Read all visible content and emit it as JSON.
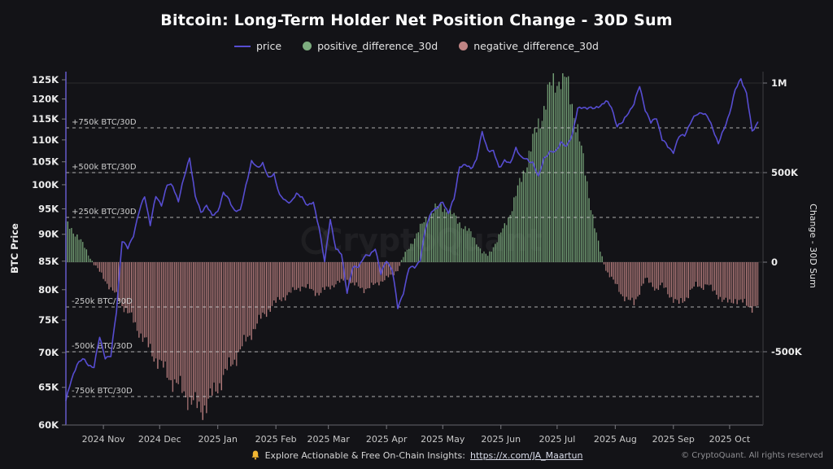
{
  "title": "Bitcoin: Long-Term Holder Net Position Change - 30D Sum",
  "watermark": "CryptoQuant",
  "colors": {
    "background": "#131317",
    "price_line": "#574dd2",
    "positive_bar": "#7dad7f",
    "negative_bar": "#c08484",
    "dashed_line": "#e0e0e0",
    "faint_grid": "rgba(255,255,255,0.10)",
    "tick_text": "#ececec",
    "month_text": "#c8c8c8",
    "annotation_text": "#cdcdcd",
    "left_spine": "#6a5fd8",
    "bottom_spine": "#55555c",
    "bell": "#f2b632"
  },
  "legend": {
    "items": [
      {
        "label": "price",
        "type": "line",
        "color": "#574dd2"
      },
      {
        "label": "positive_difference_30d",
        "type": "dot",
        "color": "#7dad7f"
      },
      {
        "label": "negative_difference_30d",
        "type": "dot",
        "color": "#c08484"
      }
    ]
  },
  "footer": {
    "cta_text": "Explore Actionable & Free On-Chain Insights:",
    "cta_link": "https://x.com/JA_Maartun",
    "copyright": "© CryptoQuant. All rights reserved"
  },
  "chart_data": {
    "type": "mixed",
    "title": "Bitcoin: Long-Term Holder Net Position Change - 30D Sum",
    "legend_position": "top-center",
    "grid": "dashed horizontal annotation lines at ±250k/±500k/±750k BTC/30D; faint solid gridlines at right-axis ticks",
    "x": {
      "start_date": "2024-10-12",
      "step_days": 3,
      "end_date": "2025-10-16"
    },
    "x_axis": {
      "ticks": [
        {
          "label": "2024 Nov",
          "day_offset": 20
        },
        {
          "label": "2024 Dec",
          "day_offset": 50
        },
        {
          "label": "2025 Jan",
          "day_offset": 81
        },
        {
          "label": "2025 Feb",
          "day_offset": 112
        },
        {
          "label": "2025 Mar",
          "day_offset": 140
        },
        {
          "label": "2025 Apr",
          "day_offset": 171
        },
        {
          "label": "2025 May",
          "day_offset": 201
        },
        {
          "label": "2025 Jun",
          "day_offset": 232
        },
        {
          "label": "2025 Jul",
          "day_offset": 262
        },
        {
          "label": "2025 Aug",
          "day_offset": 293
        },
        {
          "label": "2025 Sep",
          "day_offset": 324
        },
        {
          "label": "2025 Oct",
          "day_offset": 354
        }
      ]
    },
    "left_axis": {
      "label": "BTC Price",
      "scale": "log",
      "tick_values_usd_k": [
        60,
        65,
        70,
        75,
        80,
        85,
        90,
        95,
        100,
        105,
        110,
        115,
        120,
        125
      ],
      "tick_labels": [
        "60K",
        "65K",
        "70K",
        "75K",
        "80K",
        "85K",
        "90K",
        "95K",
        "100K",
        "105K",
        "110K",
        "115K",
        "120K",
        "125K"
      ]
    },
    "right_axis": {
      "label": "Change - 30D Sum",
      "scale": "linear",
      "ticks": [
        {
          "value_k_btc": 1000,
          "label": "1M"
        },
        {
          "value_k_btc": 500,
          "label": "500K"
        },
        {
          "value_k_btc": 0,
          "label": "0"
        },
        {
          "value_k_btc": -500,
          "label": "-500K"
        }
      ],
      "approx_range_k_btc": [
        -910,
        1065
      ]
    },
    "annotations": [
      {
        "value_k_btc": 750,
        "label": "+750k BTC/30D"
      },
      {
        "value_k_btc": 500,
        "label": "+500k BTC/30D"
      },
      {
        "value_k_btc": 250,
        "label": "+250k BTC/30D"
      },
      {
        "value_k_btc": -250,
        "label": "-250k BTC/30D"
      },
      {
        "value_k_btc": -500,
        "label": "-500k BTC/30D"
      },
      {
        "value_k_btc": -750,
        "label": "-750k BTC/30D"
      }
    ],
    "series": [
      {
        "name": "price",
        "type": "line",
        "axis": "left",
        "color": "#574dd2",
        "values_usd_k": [
          63.2,
          66.0,
          68.4,
          69.0,
          68.2,
          67.9,
          72.3,
          69.3,
          69.4,
          76.5,
          88.8,
          87.3,
          89.9,
          94.3,
          97.7,
          91.9,
          97.5,
          95.9,
          99.9,
          99.8,
          96.6,
          101.4,
          106.1,
          97.5,
          94.3,
          95.8,
          93.5,
          94.6,
          98.2,
          96.9,
          94.7,
          94.5,
          100.0,
          105.0,
          103.7,
          104.8,
          101.3,
          102.4,
          97.7,
          96.6,
          96.5,
          97.9,
          97.5,
          95.6,
          96.2,
          91.4,
          84.7,
          93.0,
          87.2,
          86.2,
          79.6,
          83.7,
          84.1,
          85.8,
          86.0,
          87.5,
          82.6,
          85.2,
          83.5,
          76.9,
          79.6,
          83.7,
          84.0,
          85.2,
          91.2,
          94.7,
          95.0,
          96.5,
          94.2,
          96.9,
          104.1,
          104.2,
          103.5,
          105.6,
          111.7,
          107.8,
          107.3,
          103.7,
          105.4,
          104.4,
          108.3,
          105.8,
          105.5,
          104.9,
          101.5,
          105.9,
          107.1,
          107.2,
          109.6,
          108.2,
          111.3,
          117.5,
          117.7,
          118.0,
          117.4,
          118.4,
          119.5,
          117.8,
          113.4,
          114.1,
          116.7,
          118.8,
          123.3,
          117.4,
          114.0,
          115.4,
          110.1,
          108.4,
          107.3,
          110.7,
          111.2,
          114.0,
          115.9,
          116.8,
          115.6,
          112.8,
          109.2,
          112.4,
          116.6,
          122.2,
          125.3,
          121.5,
          111.8,
          114.3
        ]
      },
      {
        "name": "positive_difference_30d",
        "type": "bar",
        "axis": "right",
        "color": "#7dad7f",
        "note": "positive values of net_change_k_btc_30d"
      },
      {
        "name": "negative_difference_30d",
        "type": "bar",
        "axis": "right",
        "color": "#c08484",
        "note": "negative values of net_change_k_btc_30d"
      }
    ],
    "net_change_k_btc_30d": [
      215,
      185,
      150,
      100,
      45,
      -10,
      -55,
      -100,
      -150,
      -190,
      -235,
      -280,
      -330,
      -385,
      -440,
      -490,
      -535,
      -580,
      -625,
      -660,
      -695,
      -725,
      -765,
      -800,
      -820,
      -795,
      -745,
      -690,
      -640,
      -590,
      -540,
      -490,
      -440,
      -390,
      -345,
      -300,
      -265,
      -235,
      -210,
      -190,
      -170,
      -150,
      -135,
      -145,
      -160,
      -175,
      -155,
      -135,
      -120,
      -110,
      -100,
      -120,
      -140,
      -150,
      -140,
      -125,
      -105,
      -90,
      -75,
      -40,
      30,
      80,
      140,
      190,
      240,
      280,
      305,
      310,
      290,
      255,
      220,
      190,
      160,
      115,
      55,
      35,
      90,
      140,
      200,
      280,
      370,
      470,
      570,
      670,
      770,
      870,
      960,
      1010,
      1040,
      1000,
      890,
      740,
      560,
      380,
      200,
      60,
      -40,
      -90,
      -140,
      -185,
      -215,
      -230,
      -160,
      -95,
      -120,
      -150,
      -130,
      -170,
      -205,
      -235,
      -210,
      -160,
      -130,
      -140,
      -120,
      -160,
      -185,
      -215,
      -230,
      -205,
      -220,
      -240,
      -250,
      -245
    ]
  }
}
